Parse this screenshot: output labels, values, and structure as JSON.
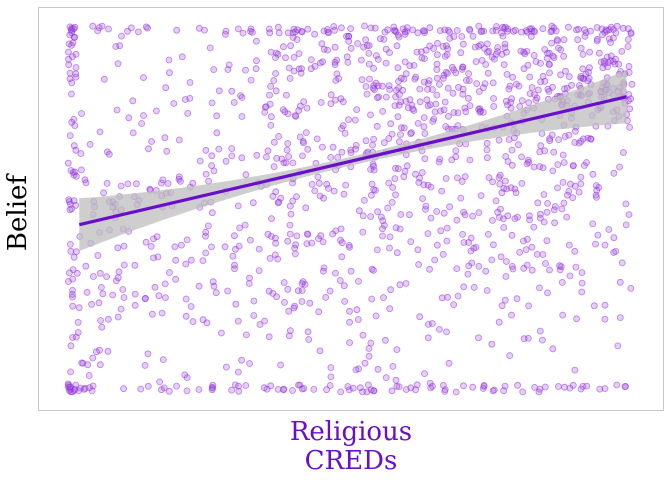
{
  "chart_data": {
    "type": "scatter",
    "title": "",
    "xlabel": [
      "Religious",
      "CREDs"
    ],
    "ylabel": "Belief",
    "xlim": [
      0,
      1
    ],
    "ylim": [
      0,
      1
    ],
    "x_ticks_shown": false,
    "y_ticks_shown": false,
    "grid": false,
    "legend": "none",
    "n_points_approx": 1400,
    "point_generation": "jittered-uniform",
    "trend": {
      "method": "linear",
      "intercept": 0.45,
      "slope": 0.36,
      "x_start": 0.02,
      "x_end": 0.99
    },
    "confidence_band": true,
    "colors": {
      "points": "#a24de0",
      "trend_line": "#6a0dcc",
      "band": "#bdbdbd",
      "xlabel": "#6a0dcc",
      "ylabel": "#000000",
      "frame": "#c8c8c8"
    }
  }
}
